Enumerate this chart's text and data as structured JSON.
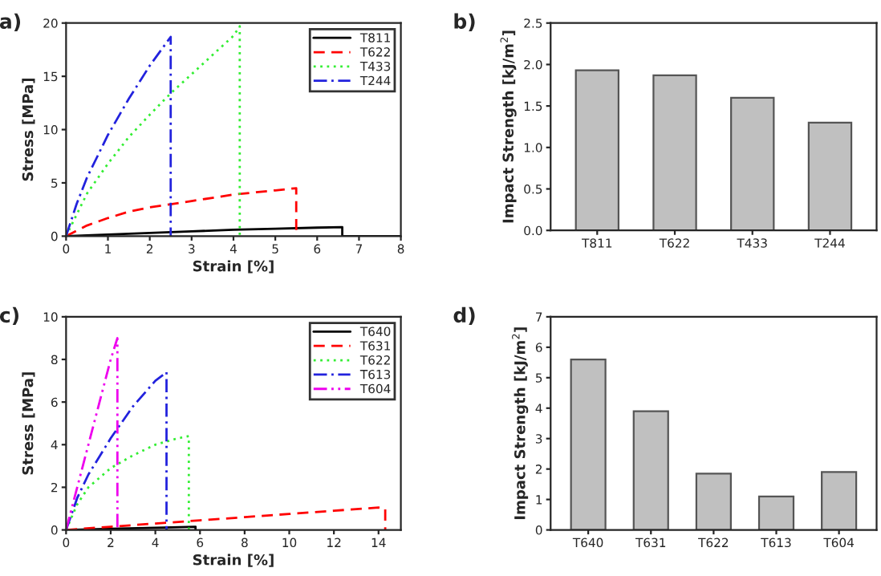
{
  "chart_data": [
    {
      "type": "line",
      "annotations": [
        "a)"
      ],
      "xlabel": "Strain [%]",
      "ylabel": "Stress [MPa]",
      "xlim": [
        0,
        8
      ],
      "ylim": [
        0,
        20
      ],
      "xticks": [
        0,
        1,
        2,
        3,
        4,
        5,
        6,
        7,
        8
      ],
      "yticks": [
        0,
        5,
        10,
        15,
        20
      ],
      "grid": false,
      "legend": "top right",
      "series": [
        {
          "name": "T811",
          "color": "#000000",
          "line_style": "solid",
          "x": [
            0,
            1,
            2,
            3,
            4,
            5,
            6,
            6.6,
            6.6,
            8
          ],
          "values": [
            0,
            0.15,
            0.3,
            0.45,
            0.6,
            0.7,
            0.8,
            0.85,
            0,
            0
          ]
        },
        {
          "name": "T622",
          "color": "#ff0000",
          "line_style": "dashed",
          "x": [
            0,
            0.5,
            1,
            1.5,
            2,
            2.5,
            3,
            3.5,
            4,
            4.5,
            5,
            5.5,
            5.5
          ],
          "values": [
            0,
            1,
            1.7,
            2.3,
            2.7,
            3,
            3.3,
            3.6,
            3.9,
            4.1,
            4.3,
            4.5,
            0
          ]
        },
        {
          "name": "T433",
          "color": "#33ee33",
          "line_style": "dotted",
          "x": [
            0,
            0.5,
            1,
            1.5,
            2,
            2.5,
            3,
            3.5,
            4,
            4.15,
            4.15
          ],
          "values": [
            0,
            4,
            6.8,
            9.3,
            11.4,
            13.4,
            15.2,
            17,
            18.8,
            19.7,
            0
          ]
        },
        {
          "name": "T244",
          "color": "#2222dd",
          "line_style": "dashdot",
          "x": [
            0,
            0.25,
            0.5,
            1,
            1.5,
            2,
            2.5,
            2.5
          ],
          "values": [
            0,
            3,
            5.5,
            9.5,
            12.9,
            16,
            18.7,
            0
          ]
        }
      ]
    },
    {
      "type": "bar",
      "annotations": [
        "b)"
      ],
      "ylabel": "Impact Strength [kJ/m$^{2}$]",
      "categories": [
        "T811",
        "T622",
        "T433",
        "T244"
      ],
      "values": [
        1.93,
        1.87,
        1.6,
        1.3
      ],
      "color": "#c0c0c0",
      "ylim": [
        0,
        2.5
      ],
      "yticks": [
        {
          "value": 0,
          "label": "0.0"
        },
        {
          "value": 0.5,
          "label": "0.5"
        },
        {
          "value": 1,
          "label": "1.0"
        },
        {
          "value": 1.5,
          "label": "1.5"
        },
        {
          "value": 2,
          "label": "2.0"
        },
        {
          "value": 2.5,
          "label": "2.5"
        }
      ],
      "grid": false
    },
    {
      "type": "line",
      "annotations": [
        "c)"
      ],
      "xlabel": "Strain [%]",
      "ylabel": "Stress [MPa]",
      "xlim": [
        0,
        15
      ],
      "ylim": [
        0,
        10
      ],
      "xticks": [
        0,
        2,
        4,
        6,
        8,
        10,
        12,
        14
      ],
      "yticks": [
        0,
        2,
        4,
        6,
        8,
        10
      ],
      "grid": false,
      "legend": "top right",
      "series": [
        {
          "name": "T640",
          "color": "#000000",
          "line_style": "solid",
          "x": [
            0,
            2,
            4,
            5.8,
            5.8
          ],
          "values": [
            0,
            0.05,
            0.1,
            0.15,
            0
          ]
        },
        {
          "name": "T631",
          "color": "#ff0000",
          "line_style": "dashed",
          "x": [
            0,
            2,
            4,
            6,
            8,
            10,
            12,
            14,
            14.3,
            14.3
          ],
          "values": [
            0,
            0.15,
            0.3,
            0.45,
            0.6,
            0.75,
            0.9,
            1.05,
            1,
            0
          ]
        },
        {
          "name": "T622",
          "color": "#33ee33",
          "line_style": "dotted",
          "x": [
            0,
            0.5,
            1,
            2,
            3,
            4,
            5,
            5.5,
            5.5
          ],
          "values": [
            0,
            1.2,
            2,
            2.9,
            3.5,
            4,
            4.3,
            4.4,
            0
          ]
        },
        {
          "name": "T613",
          "color": "#2222dd",
          "line_style": "dashdot",
          "x": [
            0,
            0.5,
            1,
            2,
            3,
            4,
            4.5,
            4.5
          ],
          "values": [
            0,
            1.5,
            2.6,
            4.3,
            5.8,
            7,
            7.4,
            0
          ]
        },
        {
          "name": "T604",
          "color": "#ee00ee",
          "line_style": "dashdotdot",
          "x": [
            0,
            0.5,
            1,
            1.5,
            2,
            2.3,
            2.3
          ],
          "values": [
            0,
            2,
            4,
            6,
            8,
            9,
            0
          ]
        }
      ]
    },
    {
      "type": "bar",
      "annotations": [
        "d)"
      ],
      "ylabel": "Impact Strength [kJ/m$^{2}$]",
      "categories": [
        "T640",
        "T631",
        "T622",
        "T613",
        "T604"
      ],
      "values": [
        5.6,
        3.9,
        1.85,
        1.1,
        1.9
      ],
      "color": "#c0c0c0",
      "ylim": [
        0,
        7
      ],
      "yticks": [
        0,
        1,
        2,
        3,
        4,
        5,
        6,
        7
      ],
      "grid": false
    }
  ]
}
